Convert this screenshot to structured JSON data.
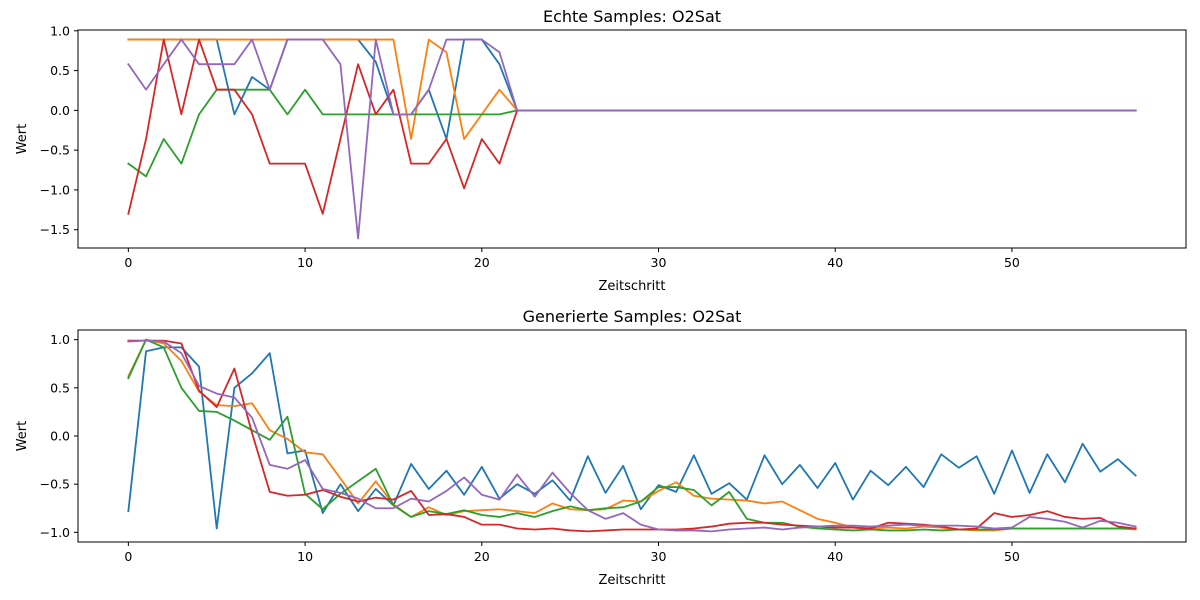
{
  "chart_data": [
    {
      "type": "line",
      "title": "Echte Samples: O2Sat",
      "xlabel": "Zeitschritt",
      "ylabel": "Wert",
      "xlim": [
        -2.85,
        59.85
      ],
      "ylim": [
        -1.73,
        1.01
      ],
      "xticks": [
        0,
        10,
        20,
        30,
        40,
        50
      ],
      "xtick_labels": [
        "0",
        "10",
        "20",
        "30",
        "40",
        "50"
      ],
      "yticks": [
        -1.5,
        -1.0,
        -0.5,
        0.0,
        0.5,
        1.0
      ],
      "ytick_labels": [
        "−1.5",
        "−1.0",
        "−0.5",
        "0.0",
        "0.5",
        "1.0"
      ],
      "grid": false,
      "colors": [
        "#1f77b4",
        "#ff7f0e",
        "#2ca02c",
        "#d62728",
        "#9467bd"
      ],
      "series": [
        {
          "values": [
            0.89,
            0.89,
            0.89,
            0.89,
            0.89,
            0.89,
            -0.05,
            0.42,
            0.26,
            0.89,
            0.89,
            0.89,
            0.89,
            0.89,
            0.61,
            -0.05,
            -0.05,
            0.26,
            -0.36,
            0.89,
            0.89,
            0.58,
            0,
            0,
            0,
            0,
            0,
            0,
            0,
            0,
            0,
            0,
            0,
            0,
            0,
            0,
            0,
            0,
            0,
            0,
            0,
            0,
            0,
            0,
            0,
            0,
            0,
            0,
            0,
            0,
            0,
            0,
            0,
            0,
            0,
            0,
            0,
            0
          ]
        },
        {
          "values": [
            0.89,
            0.89,
            0.89,
            0.89,
            0.89,
            0.89,
            0.89,
            0.89,
            0.89,
            0.89,
            0.89,
            0.89,
            0.89,
            0.89,
            0.89,
            0.89,
            -0.36,
            0.89,
            0.73,
            -0.36,
            -0.05,
            0.26,
            0,
            0,
            0,
            0,
            0,
            0,
            0,
            0,
            0,
            0,
            0,
            0,
            0,
            0,
            0,
            0,
            0,
            0,
            0,
            0,
            0,
            0,
            0,
            0,
            0,
            0,
            0,
            0,
            0,
            0,
            0,
            0,
            0,
            0,
            0,
            0
          ]
        },
        {
          "values": [
            -0.67,
            -0.83,
            -0.36,
            -0.67,
            -0.05,
            0.26,
            0.26,
            0.26,
            0.26,
            -0.05,
            0.26,
            -0.05,
            -0.05,
            -0.05,
            -0.05,
            -0.05,
            -0.05,
            -0.05,
            -0.05,
            -0.05,
            -0.05,
            -0.05,
            0,
            0,
            0,
            0,
            0,
            0,
            0,
            0,
            0,
            0,
            0,
            0,
            0,
            0,
            0,
            0,
            0,
            0,
            0,
            0,
            0,
            0,
            0,
            0,
            0,
            0,
            0,
            0,
            0,
            0,
            0,
            0,
            0,
            0,
            0,
            0
          ]
        },
        {
          "values": [
            -1.3,
            -0.36,
            0.89,
            -0.05,
            0.89,
            0.26,
            0.26,
            -0.05,
            -0.67,
            -0.67,
            -0.67,
            -1.3,
            -0.36,
            0.58,
            -0.05,
            0.26,
            -0.67,
            -0.67,
            -0.36,
            -0.98,
            -0.36,
            -0.67,
            0,
            0,
            0,
            0,
            0,
            0,
            0,
            0,
            0,
            0,
            0,
            0,
            0,
            0,
            0,
            0,
            0,
            0,
            0,
            0,
            0,
            0,
            0,
            0,
            0,
            0,
            0,
            0,
            0,
            0,
            0,
            0,
            0,
            0,
            0,
            0
          ]
        },
        {
          "values": [
            0.58,
            0.26,
            0.58,
            0.89,
            0.58,
            0.58,
            0.58,
            0.89,
            0.26,
            0.89,
            0.89,
            0.89,
            0.58,
            -1.61,
            0.89,
            -0.05,
            -0.05,
            0.26,
            0.89,
            0.89,
            0.89,
            0.73,
            0,
            0,
            0,
            0,
            0,
            0,
            0,
            0,
            0,
            0,
            0,
            0,
            0,
            0,
            0,
            0,
            0,
            0,
            0,
            0,
            0,
            0,
            0,
            0,
            0,
            0,
            0,
            0,
            0,
            0,
            0,
            0,
            0,
            0,
            0,
            0
          ]
        }
      ]
    },
    {
      "type": "line",
      "title": "Generierte Samples: O2Sat",
      "xlabel": "Zeitschritt",
      "ylabel": "Wert",
      "xlim": [
        -2.85,
        59.85
      ],
      "ylim": [
        -1.1,
        1.1
      ],
      "xticks": [
        0,
        10,
        20,
        30,
        40,
        50
      ],
      "xtick_labels": [
        "0",
        "10",
        "20",
        "30",
        "40",
        "50"
      ],
      "yticks": [
        -1.0,
        -0.5,
        0.0,
        0.5,
        1.0
      ],
      "ytick_labels": [
        "−1.0",
        "−0.5",
        "0.0",
        "0.5",
        "1.0"
      ],
      "grid": false,
      "colors": [
        "#1f77b4",
        "#ff7f0e",
        "#2ca02c",
        "#d62728",
        "#9467bd"
      ],
      "series": [
        {
          "values": [
            -0.78,
            0.88,
            0.92,
            0.92,
            0.72,
            -0.96,
            0.5,
            0.65,
            0.86,
            -0.18,
            -0.15,
            -0.8,
            -0.5,
            -0.78,
            -0.55,
            -0.72,
            -0.29,
            -0.55,
            -0.36,
            -0.61,
            -0.32,
            -0.65,
            -0.5,
            -0.6,
            -0.46,
            -0.67,
            -0.21,
            -0.59,
            -0.31,
            -0.76,
            -0.51,
            -0.58,
            -0.2,
            -0.6,
            -0.49,
            -0.66,
            -0.2,
            -0.5,
            -0.3,
            -0.54,
            -0.28,
            -0.66,
            -0.36,
            -0.51,
            -0.32,
            -0.53,
            -0.19,
            -0.33,
            -0.21,
            -0.6,
            -0.15,
            -0.59,
            -0.19,
            -0.48,
            -0.08,
            -0.37,
            -0.24,
            -0.41
          ]
        },
        {
          "values": [
            0.62,
            1.0,
            0.96,
            0.78,
            0.46,
            0.32,
            0.31,
            0.34,
            0.06,
            -0.03,
            -0.17,
            -0.19,
            -0.44,
            -0.7,
            -0.47,
            -0.71,
            -0.84,
            -0.74,
            -0.82,
            -0.78,
            -0.77,
            -0.76,
            -0.78,
            -0.8,
            -0.7,
            -0.76,
            -0.77,
            -0.76,
            -0.67,
            -0.68,
            -0.57,
            -0.48,
            -0.62,
            -0.65,
            -0.66,
            -0.67,
            -0.7,
            -0.68,
            -0.77,
            -0.86,
            -0.9,
            -0.95,
            -0.96,
            -0.95,
            -0.96,
            -0.94,
            -0.95,
            -0.97,
            -0.98,
            -0.98,
            -0.96,
            -0.96,
            -0.96,
            -0.96,
            -0.96,
            -0.96,
            -0.96,
            -0.97
          ]
        },
        {
          "values": [
            0.6,
            1.0,
            0.92,
            0.5,
            0.26,
            0.25,
            0.16,
            0.06,
            -0.04,
            0.2,
            -0.6,
            -0.76,
            -0.6,
            -0.47,
            -0.34,
            -0.72,
            -0.84,
            -0.78,
            -0.81,
            -0.77,
            -0.82,
            -0.84,
            -0.8,
            -0.84,
            -0.78,
            -0.73,
            -0.77,
            -0.75,
            -0.74,
            -0.68,
            -0.53,
            -0.53,
            -0.56,
            -0.72,
            -0.58,
            -0.86,
            -0.9,
            -0.9,
            -0.94,
            -0.96,
            -0.97,
            -0.98,
            -0.97,
            -0.98,
            -0.98,
            -0.97,
            -0.98,
            -0.97,
            -0.97,
            -0.97,
            -0.96,
            -0.96,
            -0.96,
            -0.96,
            -0.96,
            -0.96,
            -0.96,
            -0.96
          ]
        },
        {
          "values": [
            0.99,
            0.99,
            0.99,
            0.96,
            0.47,
            0.3,
            0.7,
            0.03,
            -0.58,
            -0.62,
            -0.61,
            -0.56,
            -0.63,
            -0.68,
            -0.64,
            -0.66,
            -0.57,
            -0.82,
            -0.81,
            -0.84,
            -0.92,
            -0.92,
            -0.96,
            -0.97,
            -0.96,
            -0.98,
            -0.99,
            -0.98,
            -0.97,
            -0.97,
            -0.97,
            -0.97,
            -0.96,
            -0.94,
            -0.91,
            -0.9,
            -0.9,
            -0.92,
            -0.93,
            -0.94,
            -0.95,
            -0.95,
            -0.96,
            -0.9,
            -0.91,
            -0.92,
            -0.94,
            -0.97,
            -0.96,
            -0.8,
            -0.84,
            -0.82,
            -0.78,
            -0.84,
            -0.86,
            -0.85,
            -0.94,
            -0.96
          ]
        },
        {
          "values": [
            0.98,
            0.99,
            0.98,
            0.86,
            0.52,
            0.44,
            0.4,
            0.19,
            -0.3,
            -0.34,
            -0.25,
            -0.55,
            -0.59,
            -0.65,
            -0.75,
            -0.75,
            -0.65,
            -0.68,
            -0.57,
            -0.43,
            -0.61,
            -0.66,
            -0.4,
            -0.63,
            -0.38,
            -0.59,
            -0.77,
            -0.86,
            -0.8,
            -0.92,
            -0.97,
            -0.98,
            -0.98,
            -0.99,
            -0.97,
            -0.96,
            -0.95,
            -0.97,
            -0.95,
            -0.94,
            -0.93,
            -0.93,
            -0.94,
            -0.93,
            -0.92,
            -0.93,
            -0.93,
            -0.93,
            -0.94,
            -0.96,
            -0.95,
            -0.84,
            -0.86,
            -0.89,
            -0.95,
            -0.88,
            -0.9,
            -0.94
          ]
        }
      ]
    }
  ]
}
